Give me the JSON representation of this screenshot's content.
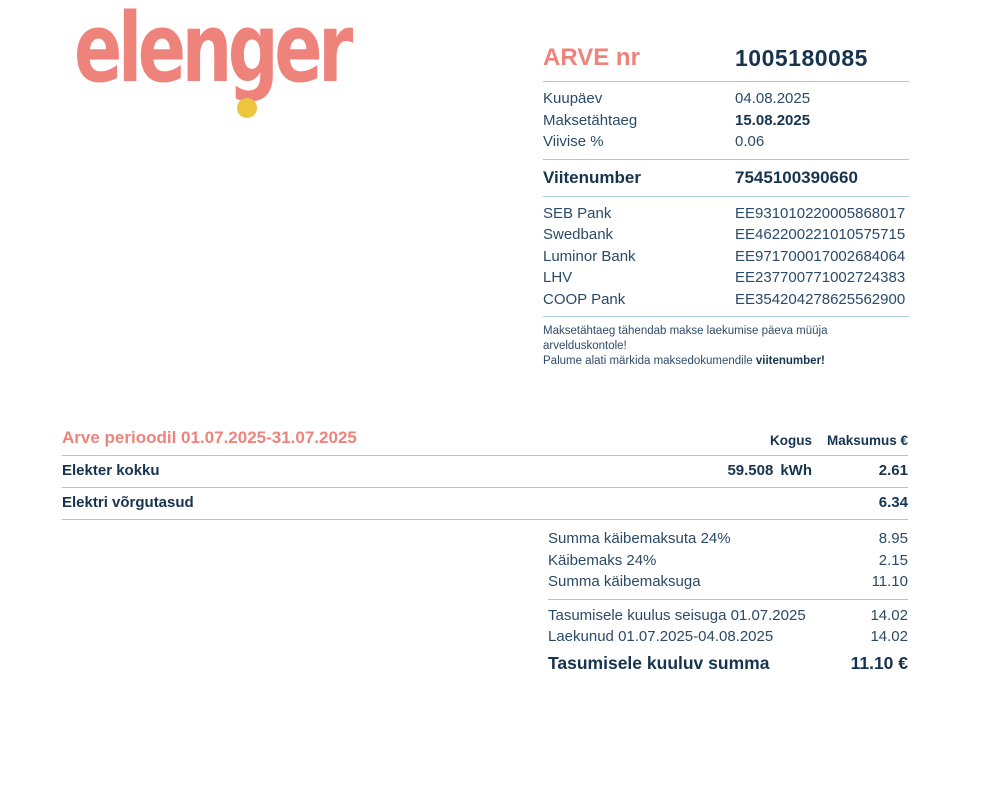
{
  "colors": {
    "salmon": "#ee837b",
    "navy": "#16344f",
    "divider": "#a9c9d6",
    "gold": "#edc53f"
  },
  "brand": {
    "logo_text": "elenger"
  },
  "invoice_header": {
    "title_label": "ARVE nr",
    "invoice_number": "1005180085",
    "rows": [
      {
        "label": "Kuupäev",
        "value": "04.08.2025"
      },
      {
        "label": "Maksetähtaeg",
        "value": "15.08.2025"
      },
      {
        "label": "Viivise %",
        "value": "0.06"
      }
    ],
    "reference": {
      "label": "Viitenumber",
      "value": "7545100390660"
    },
    "banks": [
      {
        "name": "SEB Pank",
        "iban": "EE931010220005868017"
      },
      {
        "name": "Swedbank",
        "iban": "EE462200221010575715"
      },
      {
        "name": "Luminor Bank",
        "iban": "EE971700017002684064"
      },
      {
        "name": "LHV",
        "iban": "EE237700771002724383"
      },
      {
        "name": "COOP Pank",
        "iban": "EE354204278625562900"
      }
    ],
    "note_line1": "Maksetähtaeg tähendab makse laekumise päeva müüja arvelduskontole!",
    "note_line2_prefix": "Palume alati märkida maksedokumendile ",
    "note_line2_bold": "viitenumber!"
  },
  "invoice_table": {
    "period_title": "Arve perioodil 01.07.2025-31.07.2025",
    "col_kogus": "Kogus",
    "col_maksumus": "Maksumus €",
    "rows": [
      {
        "desc": "Elekter kokku",
        "qty": "59.508",
        "unit": "kWh",
        "amount": "2.61"
      },
      {
        "desc": "Elektri võrgutasud",
        "qty": "",
        "unit": "",
        "amount": "6.34"
      }
    ],
    "summary": [
      {
        "label": "Summa käibemaksuta 24%",
        "value": "8.95"
      },
      {
        "label": "Käibemaks 24%",
        "value": "2.15"
      },
      {
        "label": "Summa käibemaksuga",
        "value": "11.10"
      }
    ],
    "balance": [
      {
        "label": "Tasumisele kuulus seisuga 01.07.2025",
        "value": "14.02"
      },
      {
        "label": "Laekunud 01.07.2025-04.08.2025",
        "value": "14.02"
      }
    ],
    "total": {
      "label": "Tasumisele kuuluv summa",
      "value": "11.10 €"
    }
  }
}
